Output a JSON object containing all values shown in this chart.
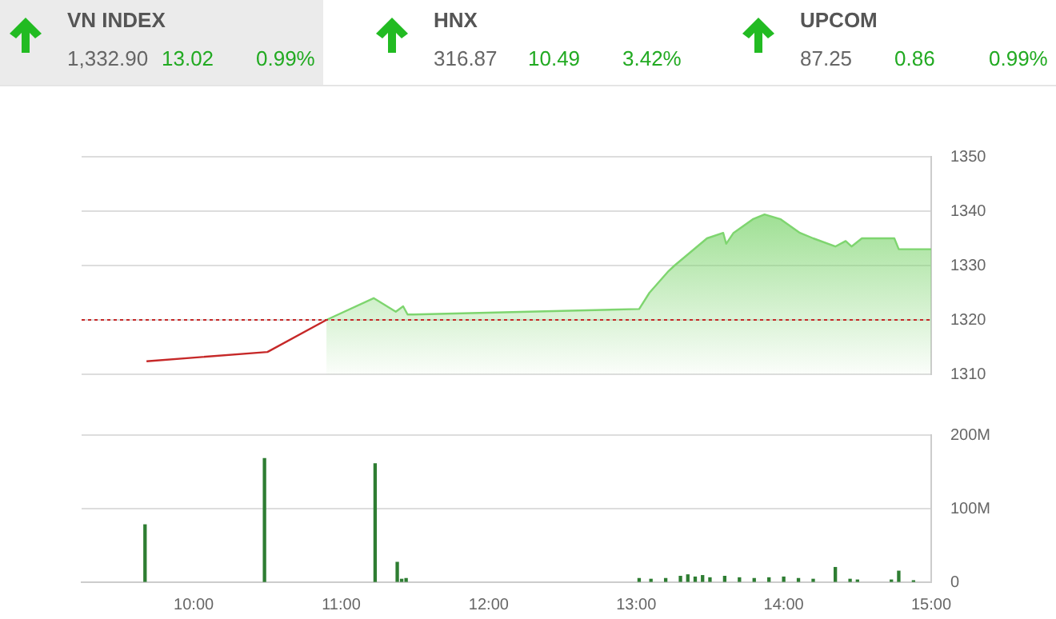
{
  "chart_data": [
    {
      "type": "other",
      "annotations": [
        "VN INDEX",
        "1,332.90",
        "13.02",
        "0.99%",
        "HNX",
        "316.87",
        "10.49",
        "3.42%",
        "UPCOM",
        "87.25",
        "0.86",
        "0.99%"
      ]
    },
    {
      "type": "area",
      "series": [
        {
          "type": "line",
          "color": "#c62828",
          "x": [
            9.68,
            10.5,
            10.9
          ],
          "values": [
            1312.4,
            1314.1,
            1320
          ]
        },
        {
          "color": "#7ed56f",
          "x": [
            10.9,
            11.22,
            11.37,
            11.42,
            11.45,
            11.49,
            13.02,
            13.09,
            13.22,
            13.26,
            13.48,
            13.59,
            13.61,
            13.66,
            13.79,
            13.87,
            13.98,
            14.11,
            14.2,
            14.35,
            14.42,
            14.46,
            14.53,
            14.75,
            14.78,
            15.0
          ],
          "values": [
            1320,
            1324,
            1321.5,
            1322.5,
            1321,
            1321,
            1322,
            1325,
            1329,
            1330,
            1335,
            1336,
            1334,
            1336,
            1338.5,
            1339.4,
            1338.5,
            1336,
            1335,
            1333.5,
            1334.5,
            1333.5,
            1335,
            1335,
            1333,
            1333
          ]
        }
      ],
      "xlim": [
        9.24,
        15
      ],
      "ylim": [
        1310,
        1350
      ],
      "yticks": [
        1310,
        1320,
        1330,
        1340,
        1350
      ],
      "tick_labels": "y",
      "grid": "y",
      "legend": false,
      "marker": "none",
      "ref_lines": [
        {
          "axis": "y",
          "value": 1320,
          "color": "#c62828",
          "line_style": "dotted"
        }
      ]
    },
    {
      "type": "bar",
      "x": [
        9.67,
        10.48,
        11.23,
        11.38,
        11.41,
        11.44,
        13.02,
        13.1,
        13.2,
        13.3,
        13.35,
        13.4,
        13.45,
        13.5,
        13.6,
        13.7,
        13.8,
        13.9,
        14.0,
        14.1,
        14.2,
        14.35,
        14.45,
        14.5,
        14.73,
        14.78,
        14.88
      ],
      "series": [
        {
          "color": "#2e7d32",
          "values": [
            78,
            168,
            161,
            27,
            4,
            5,
            5,
            4,
            5,
            8,
            10,
            7,
            9,
            6,
            8,
            6,
            5,
            6,
            7,
            5,
            4,
            20,
            4,
            3,
            3,
            15,
            2
          ]
        }
      ],
      "xlim": [
        9.24,
        15
      ],
      "xticks": [
        {
          "value": 10,
          "label": "10:00"
        },
        {
          "value": 11,
          "label": "11:00"
        },
        {
          "value": 12,
          "label": "12:00"
        },
        {
          "value": 13,
          "label": "13:00"
        },
        {
          "value": 14,
          "label": "14:00"
        },
        {
          "value": 15,
          "label": "15:00"
        }
      ],
      "ylim": [
        0,
        200
      ],
      "yticks": [
        {
          "value": 0,
          "label": "0"
        },
        {
          "value": 100,
          "label": "100M"
        },
        {
          "value": 200,
          "label": "200M"
        }
      ],
      "grid": "y",
      "legend": false
    }
  ]
}
